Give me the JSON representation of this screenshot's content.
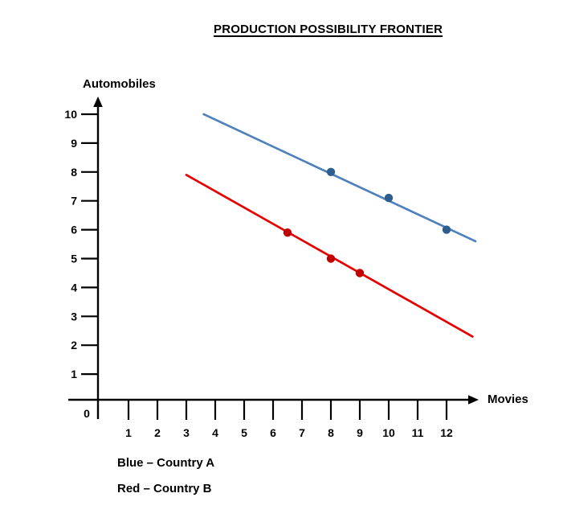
{
  "title": "PRODUCTION POSSIBILITY FRONTIER",
  "axes": {
    "x_label": "Movies",
    "y_label": "Automobiles",
    "x_ticks": [
      1,
      2,
      3,
      4,
      5,
      6,
      7,
      8,
      9,
      10,
      11,
      12
    ],
    "y_ticks": [
      1,
      2,
      3,
      4,
      5,
      6,
      7,
      8,
      9,
      10
    ],
    "origin_label": "0"
  },
  "legend": {
    "items": [
      {
        "text": "Blue – Country A",
        "series": "Country A",
        "color_word": "Blue"
      },
      {
        "text": "Red – Country B",
        "series": "Country B",
        "color_word": "Red"
      }
    ]
  },
  "colors": {
    "axis": "#000000",
    "text": "#000000",
    "country_a_line": "#4f81bd",
    "country_a_marker": "#2e5e8e",
    "country_b_line": "#e60000",
    "country_b_marker": "#c00000",
    "background": "#ffffff"
  },
  "chart_data": {
    "type": "line",
    "title": "PRODUCTION POSSIBILITY FRONTIER",
    "xlabel": "Movies",
    "ylabel": "Automobiles",
    "xlim": [
      0,
      13.2
    ],
    "ylim": [
      0,
      10.6
    ],
    "grid": false,
    "legend_position": "bottom-left",
    "series": [
      {
        "name": "Country A",
        "color": "#4f81bd",
        "marker_color": "#2e5e8e",
        "line_segment": {
          "x1": 3.6,
          "y1": 10.0,
          "x2": 13.0,
          "y2": 5.6
        },
        "points": [
          {
            "x": 8,
            "y": 8
          },
          {
            "x": 10,
            "y": 7.1
          },
          {
            "x": 12,
            "y": 6
          }
        ]
      },
      {
        "name": "Country B",
        "color": "#e60000",
        "marker_color": "#c00000",
        "line_segment": {
          "x1": 3.0,
          "y1": 7.9,
          "x2": 12.9,
          "y2": 2.3
        },
        "points": [
          {
            "x": 6.5,
            "y": 5.9
          },
          {
            "x": 8,
            "y": 5
          },
          {
            "x": 9,
            "y": 4.5
          }
        ]
      }
    ]
  }
}
